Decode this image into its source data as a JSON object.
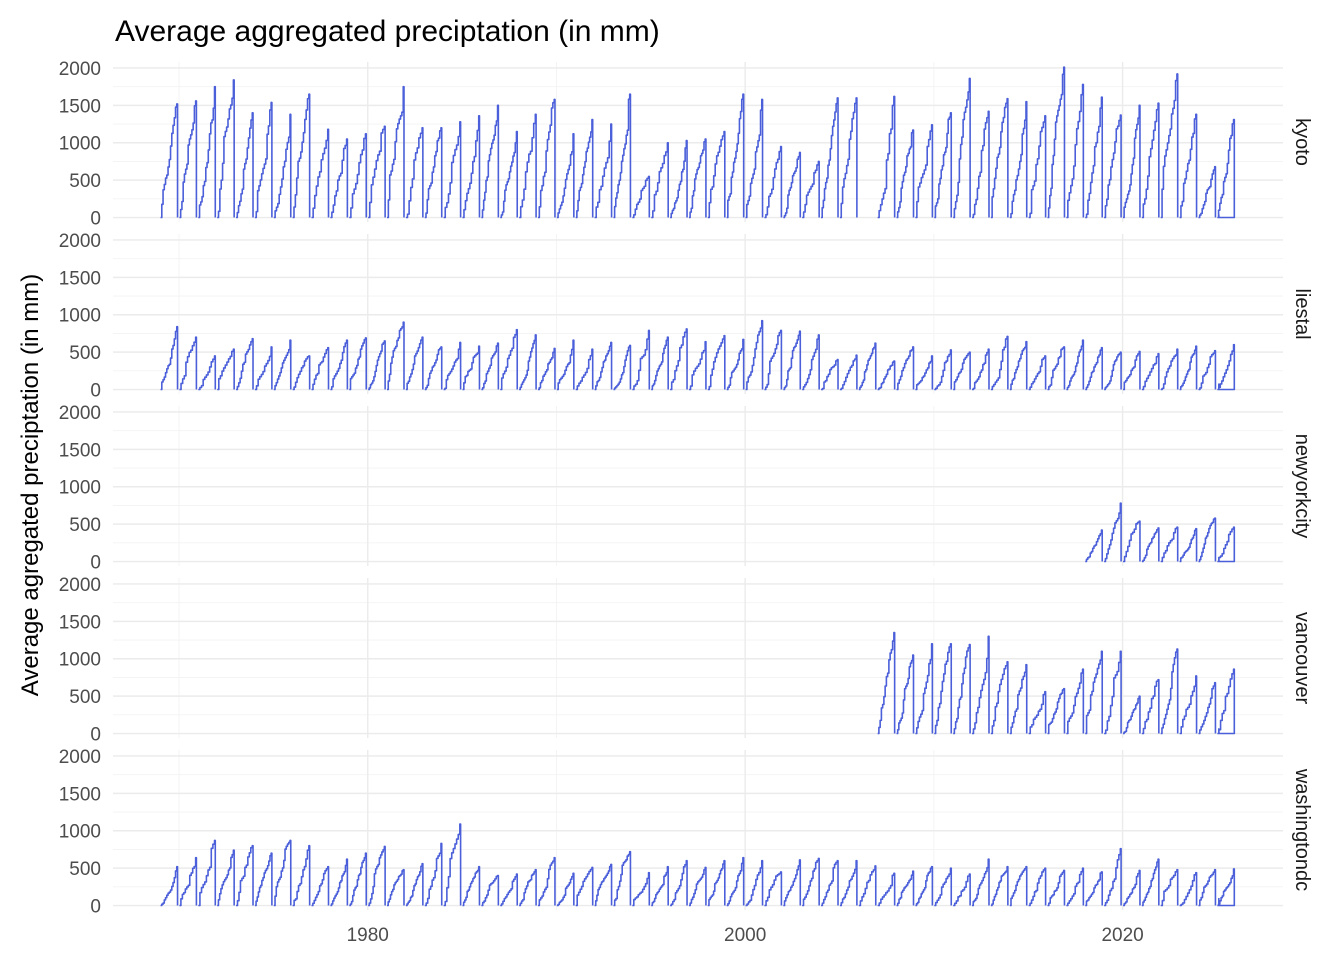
{
  "chart_data": {
    "type": "line",
    "title": "Average aggregated preciptation (in mm)",
    "xlabel": "",
    "ylabel": "Average agregated preciptation (in mm)",
    "x_ticks": [
      1980,
      2000,
      2020
    ],
    "y_ticks": [
      0,
      500,
      1000,
      1500,
      2000
    ],
    "xlim": [
      1966.5,
      2028.5
    ],
    "ylim": [
      -60,
      2080
    ],
    "grid": true,
    "color": "#4a5fd9",
    "x_unit": "year",
    "description_of_series": "Cumulative precipitation within each year; values reset to 0 at the start of each year. Pairs are [year, cumulative mm] with the year fraction at peak being year+0.85.",
    "facets": [
      {
        "name": "kyoto",
        "annual_peaks": [
          [
            1969,
            1520
          ],
          [
            1970,
            1560
          ],
          [
            1971,
            1750
          ],
          [
            1972,
            1840
          ],
          [
            1973,
            1400
          ],
          [
            1974,
            1540
          ],
          [
            1975,
            1380
          ],
          [
            1976,
            1650
          ],
          [
            1977,
            1180
          ],
          [
            1978,
            1050
          ],
          [
            1979,
            1120
          ],
          [
            1980,
            1220
          ],
          [
            1981,
            1750
          ],
          [
            1982,
            1200
          ],
          [
            1983,
            1200
          ],
          [
            1984,
            1280
          ],
          [
            1985,
            1360
          ],
          [
            1986,
            1500
          ],
          [
            1987,
            1150
          ],
          [
            1988,
            1380
          ],
          [
            1989,
            1580
          ],
          [
            1990,
            1120
          ],
          [
            1991,
            1310
          ],
          [
            1992,
            1250
          ],
          [
            1993,
            1650
          ],
          [
            1994,
            550
          ],
          [
            1995,
            1000
          ],
          [
            1996,
            1030
          ],
          [
            1997,
            1050
          ],
          [
            1998,
            1150
          ],
          [
            1999,
            1650
          ],
          [
            2000,
            1580
          ],
          [
            2001,
            950
          ],
          [
            2002,
            870
          ],
          [
            2003,
            750
          ],
          [
            2004,
            1600
          ],
          [
            2005,
            1600
          ],
          [
            2007,
            1620
          ],
          [
            2008,
            1170
          ],
          [
            2009,
            1240
          ],
          [
            2010,
            1400
          ],
          [
            2011,
            1860
          ],
          [
            2012,
            1420
          ],
          [
            2013,
            1590
          ],
          [
            2014,
            1550
          ],
          [
            2015,
            1360
          ],
          [
            2016,
            2010
          ],
          [
            2017,
            1780
          ],
          [
            2018,
            1610
          ],
          [
            2019,
            1370
          ],
          [
            2020,
            1500
          ],
          [
            2021,
            1530
          ],
          [
            2022,
            1920
          ],
          [
            2023,
            1380
          ],
          [
            2024,
            680
          ],
          [
            2025,
            1310
          ]
        ],
        "last_value": [
          2025.05,
          40
        ]
      },
      {
        "name": "liestal",
        "annual_peaks": [
          [
            1969,
            840
          ],
          [
            1970,
            700
          ],
          [
            1971,
            450
          ],
          [
            1972,
            540
          ],
          [
            1973,
            680
          ],
          [
            1974,
            570
          ],
          [
            1975,
            660
          ],
          [
            1976,
            450
          ],
          [
            1977,
            560
          ],
          [
            1978,
            660
          ],
          [
            1979,
            690
          ],
          [
            1980,
            650
          ],
          [
            1981,
            900
          ],
          [
            1982,
            700
          ],
          [
            1983,
            570
          ],
          [
            1984,
            630
          ],
          [
            1985,
            580
          ],
          [
            1986,
            620
          ],
          [
            1987,
            800
          ],
          [
            1988,
            730
          ],
          [
            1989,
            550
          ],
          [
            1990,
            660
          ],
          [
            1991,
            540
          ],
          [
            1992,
            630
          ],
          [
            1993,
            590
          ],
          [
            1994,
            790
          ],
          [
            1995,
            700
          ],
          [
            1996,
            810
          ],
          [
            1997,
            640
          ],
          [
            1998,
            720
          ],
          [
            1999,
            670
          ],
          [
            2000,
            920
          ],
          [
            2001,
            790
          ],
          [
            2002,
            780
          ],
          [
            2003,
            730
          ],
          [
            2004,
            400
          ],
          [
            2005,
            460
          ],
          [
            2006,
            620
          ],
          [
            2007,
            380
          ],
          [
            2008,
            570
          ],
          [
            2009,
            450
          ],
          [
            2010,
            530
          ],
          [
            2011,
            500
          ],
          [
            2012,
            540
          ],
          [
            2013,
            710
          ],
          [
            2014,
            640
          ],
          [
            2015,
            450
          ],
          [
            2016,
            570
          ],
          [
            2017,
            660
          ],
          [
            2018,
            560
          ],
          [
            2019,
            500
          ],
          [
            2020,
            510
          ],
          [
            2021,
            480
          ],
          [
            2022,
            540
          ],
          [
            2023,
            580
          ],
          [
            2024,
            520
          ],
          [
            2025,
            600
          ]
        ],
        "last_value": [
          2025.05,
          80
        ]
      },
      {
        "name": "newyorkcity",
        "annual_peaks": [
          [
            2018,
            420
          ],
          [
            2019,
            780
          ],
          [
            2020,
            540
          ],
          [
            2021,
            450
          ],
          [
            2022,
            460
          ],
          [
            2023,
            440
          ],
          [
            2024,
            580
          ],
          [
            2025,
            460
          ]
        ],
        "last_value": [
          2025.05,
          60
        ]
      },
      {
        "name": "vancouver",
        "annual_peaks": [
          [
            2007,
            1350
          ],
          [
            2008,
            1050
          ],
          [
            2009,
            1200
          ],
          [
            2010,
            1200
          ],
          [
            2011,
            1190
          ],
          [
            2012,
            1300
          ],
          [
            2013,
            960
          ],
          [
            2014,
            920
          ],
          [
            2015,
            560
          ],
          [
            2016,
            600
          ],
          [
            2017,
            860
          ],
          [
            2018,
            1100
          ],
          [
            2019,
            1100
          ],
          [
            2020,
            500
          ],
          [
            2021,
            720
          ],
          [
            2022,
            1130
          ],
          [
            2023,
            770
          ],
          [
            2024,
            680
          ],
          [
            2025,
            860
          ]
        ],
        "last_value": [
          2025.05,
          70
        ]
      },
      {
        "name": "washingtondc",
        "annual_peaks": [
          [
            1969,
            520
          ],
          [
            1970,
            640
          ],
          [
            1971,
            870
          ],
          [
            1972,
            740
          ],
          [
            1973,
            800
          ],
          [
            1974,
            700
          ],
          [
            1975,
            870
          ],
          [
            1976,
            800
          ],
          [
            1977,
            520
          ],
          [
            1978,
            620
          ],
          [
            1979,
            700
          ],
          [
            1980,
            790
          ],
          [
            1981,
            480
          ],
          [
            1982,
            560
          ],
          [
            1983,
            830
          ],
          [
            1984,
            1090
          ],
          [
            1985,
            520
          ],
          [
            1986,
            400
          ],
          [
            1987,
            420
          ],
          [
            1988,
            480
          ],
          [
            1989,
            640
          ],
          [
            1990,
            430
          ],
          [
            1991,
            510
          ],
          [
            1992,
            550
          ],
          [
            1993,
            720
          ],
          [
            1994,
            440
          ],
          [
            1995,
            520
          ],
          [
            1996,
            600
          ],
          [
            1997,
            510
          ],
          [
            1998,
            600
          ],
          [
            1999,
            640
          ],
          [
            2000,
            600
          ],
          [
            2001,
            450
          ],
          [
            2002,
            610
          ],
          [
            2003,
            630
          ],
          [
            2004,
            600
          ],
          [
            2005,
            600
          ],
          [
            2006,
            530
          ],
          [
            2007,
            430
          ],
          [
            2008,
            460
          ],
          [
            2009,
            520
          ],
          [
            2010,
            500
          ],
          [
            2011,
            420
          ],
          [
            2012,
            620
          ],
          [
            2013,
            520
          ],
          [
            2014,
            520
          ],
          [
            2015,
            500
          ],
          [
            2016,
            470
          ],
          [
            2017,
            500
          ],
          [
            2018,
            450
          ],
          [
            2019,
            760
          ],
          [
            2020,
            470
          ],
          [
            2021,
            620
          ],
          [
            2022,
            480
          ],
          [
            2023,
            440
          ],
          [
            2024,
            480
          ],
          [
            2025,
            490
          ]
        ],
        "last_value": [
          2025.05,
          100
        ]
      }
    ]
  }
}
